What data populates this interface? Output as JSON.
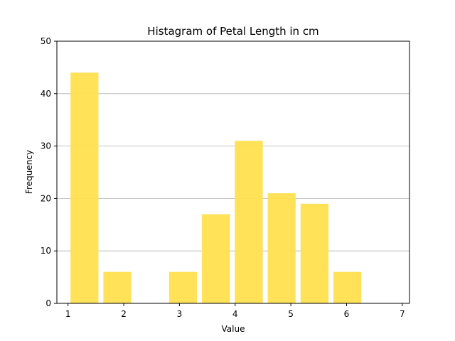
{
  "chart_data": {
    "type": "bar",
    "title": "Histagram of Petal Length in cm",
    "xlabel": "Value",
    "ylabel": "Frequency",
    "xlim": [
      0.8,
      7.13
    ],
    "ylim": [
      0,
      50
    ],
    "xticks": [
      1,
      2,
      3,
      4,
      5,
      6,
      7
    ],
    "yticks": [
      0,
      10,
      20,
      30,
      40,
      50
    ],
    "grid": "y",
    "bar_color": "#FFE04F",
    "bins": [
      {
        "start": 1.0,
        "end": 1.59,
        "value": 44
      },
      {
        "start": 1.59,
        "end": 2.18,
        "value": 6
      },
      {
        "start": 2.18,
        "end": 2.77,
        "value": 0
      },
      {
        "start": 2.77,
        "end": 3.36,
        "value": 6
      },
      {
        "start": 3.36,
        "end": 3.95,
        "value": 17
      },
      {
        "start": 3.95,
        "end": 4.54,
        "value": 31
      },
      {
        "start": 4.54,
        "end": 5.13,
        "value": 21
      },
      {
        "start": 5.13,
        "end": 5.72,
        "value": 19
      },
      {
        "start": 5.72,
        "end": 6.31,
        "value": 6
      }
    ],
    "bar_rwidth": 0.85
  }
}
